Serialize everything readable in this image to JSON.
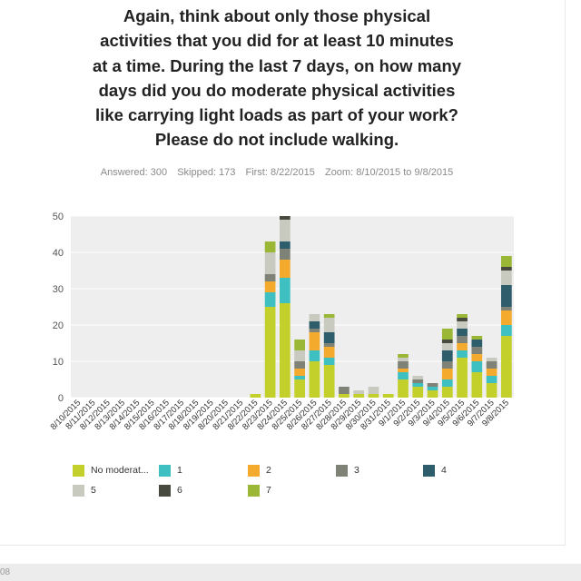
{
  "question": {
    "lines": [
      "Again, think about only those physical",
      "activities that you did for at least 10 minutes",
      "at a time. During the last 7 days, on how many",
      "days did you do moderate physical activities",
      "like carrying light loads as part of your work?",
      "Please do not include walking."
    ]
  },
  "meta": {
    "answered": "Answered: 300",
    "skipped": "Skipped: 173",
    "first": "First: 8/22/2015",
    "zoom": "Zoom: 8/10/2015 to 9/8/2015"
  },
  "footer": {
    "text": "08"
  },
  "chart_data": {
    "type": "bar",
    "stacked": true,
    "ylim": [
      0,
      50
    ],
    "yticks": [
      0,
      10,
      20,
      30,
      40,
      50
    ],
    "grid": true,
    "legend_position": "bottom",
    "categories": [
      "8/10/2015",
      "8/11/2015",
      "8/12/2015",
      "8/13/2015",
      "8/14/2015",
      "8/15/2015",
      "8/16/2015",
      "8/17/2015",
      "8/18/2015",
      "8/19/2015",
      "8/20/2015",
      "8/21/2015",
      "8/22/2015",
      "8/23/2015",
      "8/24/2015",
      "8/25/2015",
      "8/26/2015",
      "8/27/2015",
      "8/28/2015",
      "8/29/2015",
      "8/30/2015",
      "8/31/2015",
      "9/1/2015",
      "9/2/2015",
      "9/3/2015",
      "9/4/2015",
      "9/5/2015",
      "9/6/2015",
      "9/7/2015",
      "9/8/2015"
    ],
    "series": [
      {
        "name": "No moderat...",
        "color": "#c3cf2a",
        "values": [
          0,
          0,
          0,
          0,
          0,
          0,
          0,
          0,
          0,
          0,
          0,
          0,
          1,
          25,
          26,
          5,
          10,
          9,
          1,
          1,
          1,
          1,
          5,
          3,
          2,
          3,
          11,
          7,
          4,
          17
        ]
      },
      {
        "name": "1",
        "color": "#3ec0c3",
        "values": [
          0,
          0,
          0,
          0,
          0,
          0,
          0,
          0,
          0,
          0,
          0,
          0,
          0,
          4,
          7,
          1,
          3,
          2,
          0,
          0,
          0,
          0,
          2,
          1,
          1,
          2,
          2,
          3,
          2,
          3
        ]
      },
      {
        "name": "2",
        "color": "#f4aa2d",
        "values": [
          0,
          0,
          0,
          0,
          0,
          0,
          0,
          0,
          0,
          0,
          0,
          0,
          0,
          3,
          5,
          2,
          5,
          3,
          0,
          0,
          0,
          0,
          1,
          0,
          0,
          3,
          2,
          2,
          2,
          4
        ]
      },
      {
        "name": "3",
        "color": "#7f8277",
        "values": [
          0,
          0,
          0,
          0,
          0,
          0,
          0,
          0,
          0,
          0,
          0,
          0,
          0,
          2,
          3,
          2,
          1,
          1,
          2,
          0,
          0,
          0,
          2,
          1,
          1,
          2,
          2,
          2,
          2,
          1
        ]
      },
      {
        "name": "4",
        "color": "#2e5d6c",
        "values": [
          0,
          0,
          0,
          0,
          0,
          0,
          0,
          0,
          0,
          0,
          0,
          0,
          0,
          0,
          2,
          0,
          2,
          3,
          0,
          0,
          0,
          0,
          0,
          0,
          0,
          3,
          2,
          2,
          0,
          6
        ]
      },
      {
        "name": "5",
        "color": "#c8c9bf",
        "values": [
          0,
          0,
          0,
          0,
          0,
          0,
          0,
          0,
          0,
          0,
          0,
          0,
          0,
          6,
          6,
          3,
          2,
          4,
          0,
          1,
          2,
          0,
          1,
          1,
          0,
          2,
          2,
          0,
          1,
          4
        ]
      },
      {
        "name": "6",
        "color": "#474a3e",
        "values": [
          0,
          0,
          0,
          0,
          0,
          0,
          0,
          0,
          0,
          0,
          0,
          0,
          0,
          0,
          1,
          0,
          0,
          0,
          0,
          0,
          0,
          0,
          0,
          0,
          0,
          1,
          1,
          0,
          0,
          1
        ]
      },
      {
        "name": "7",
        "color": "#9ab836",
        "values": [
          0,
          0,
          0,
          0,
          0,
          0,
          0,
          0,
          0,
          0,
          0,
          0,
          0,
          3,
          0,
          3,
          0,
          1,
          0,
          0,
          0,
          0,
          1,
          0,
          0,
          3,
          1,
          1,
          0,
          3
        ]
      }
    ]
  }
}
